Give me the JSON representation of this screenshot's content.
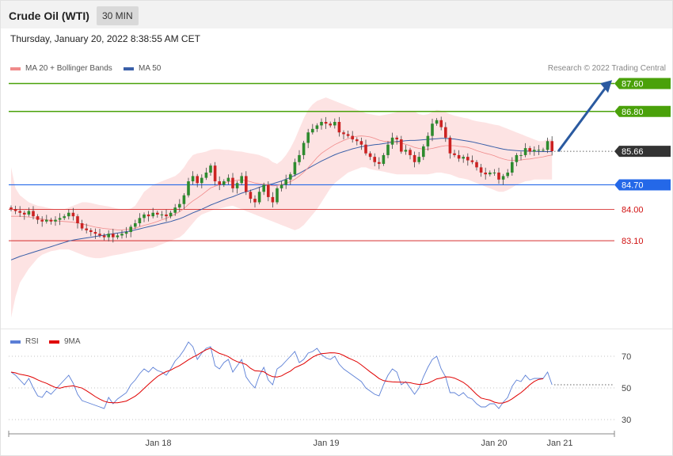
{
  "header": {
    "title": "Crude Oil (WTI)",
    "timeframe": "30 MIN"
  },
  "datetime": "Thursday, January 20, 2022 8:38:55 AM CET",
  "legend": {
    "ma20": {
      "label": "MA 20 + Bollinger Bands",
      "color": "#f08a8a"
    },
    "ma50": {
      "label": "MA 50",
      "color": "#3a5fa8"
    }
  },
  "copyright": "Research © 2022 Trading Central",
  "rsi_legend": {
    "rsi": {
      "label": "RSI",
      "color": "#5b7fd6"
    },
    "ma9": {
      "label": "9MA",
      "color": "#e00000"
    }
  },
  "levels": [
    {
      "value": 87.6,
      "label": "87.60",
      "kind": "resistance",
      "color": "#4aa10a"
    },
    {
      "value": 86.8,
      "label": "86.80",
      "kind": "resistance",
      "color": "#4aa10a"
    },
    {
      "value": 85.66,
      "label": "85.66",
      "kind": "last",
      "color": "#333333"
    },
    {
      "value": 84.7,
      "label": "84.70",
      "kind": "pivot",
      "color": "#2468e8"
    },
    {
      "value": 84.0,
      "label": "84.00",
      "kind": "support",
      "color": "#d01010"
    },
    {
      "value": 83.1,
      "label": "83.10",
      "kind": "support",
      "color": "#d01010"
    }
  ],
  "x_labels": [
    "Jan 18",
    "Jan 19",
    "Jan 20",
    "Jan 21"
  ],
  "rsi_ticks": [
    "70",
    "50",
    "30"
  ],
  "chart_data": {
    "type": "candlestick",
    "title": "",
    "y_range": [
      80.7,
      87.95
    ],
    "rsi_range": [
      20,
      80
    ],
    "close": [
      84.0,
      83.95,
      83.9,
      83.85,
      83.95,
      83.8,
      83.7,
      83.65,
      83.7,
      83.65,
      83.7,
      83.75,
      83.8,
      83.9,
      83.8,
      83.6,
      83.45,
      83.4,
      83.35,
      83.3,
      83.25,
      83.2,
      83.3,
      83.2,
      83.25,
      83.3,
      83.35,
      83.5,
      83.6,
      83.75,
      83.85,
      83.8,
      83.9,
      83.85,
      83.85,
      83.8,
      83.9,
      84.05,
      84.15,
      84.4,
      84.8,
      84.95,
      84.75,
      84.9,
      85.05,
      85.25,
      84.8,
      84.7,
      84.8,
      84.9,
      84.6,
      84.75,
      84.95,
      84.5,
      84.3,
      84.2,
      84.5,
      84.7,
      84.35,
      84.2,
      84.6,
      84.7,
      84.85,
      85.0,
      85.35,
      85.55,
      85.9,
      86.2,
      86.3,
      86.4,
      86.5,
      86.45,
      86.4,
      86.5,
      86.2,
      86.15,
      86.1,
      86.0,
      85.95,
      85.85,
      85.6,
      85.5,
      85.35,
      85.3,
      85.55,
      85.85,
      86.05,
      86.0,
      85.65,
      85.7,
      85.55,
      85.35,
      85.5,
      85.8,
      86.1,
      86.45,
      86.55,
      86.35,
      86.05,
      85.6,
      85.55,
      85.45,
      85.5,
      85.4,
      85.35,
      85.2,
      85.05,
      85.0,
      85.05,
      85.05,
      84.85,
      84.95,
      85.05,
      85.35,
      85.55,
      85.55,
      85.75,
      85.65,
      85.7,
      85.7,
      85.7,
      85.95,
      85.66
    ],
    "ma20": [
      83.8,
      83.8,
      83.8,
      83.79,
      83.78,
      83.76,
      83.74,
      83.72,
      83.7,
      83.68,
      83.67,
      83.66,
      83.65,
      83.64,
      83.63,
      83.61,
      83.58,
      83.55,
      83.52,
      83.49,
      83.47,
      83.45,
      83.44,
      83.42,
      83.41,
      83.41,
      83.42,
      83.43,
      83.46,
      83.5,
      83.54,
      83.57,
      83.61,
      83.65,
      83.7,
      83.74,
      83.8,
      83.86,
      83.93,
      84.02,
      84.14,
      84.24,
      84.32,
      84.41,
      84.51,
      84.61,
      84.66,
      84.7,
      84.75,
      84.79,
      84.81,
      84.83,
      84.84,
      84.82,
      84.79,
      84.75,
      84.73,
      84.72,
      84.7,
      84.67,
      84.68,
      84.71,
      84.75,
      84.79,
      84.86,
      84.95,
      85.06,
      85.19,
      85.33,
      85.48,
      85.6,
      85.69,
      85.77,
      85.85,
      85.91,
      85.97,
      86.02,
      86.06,
      86.09,
      86.1,
      86.09,
      86.07,
      86.03,
      85.98,
      85.95,
      85.94,
      85.93,
      85.92,
      85.89,
      85.86,
      85.82,
      85.77,
      85.74,
      85.72,
      85.72,
      85.74,
      85.77,
      85.8,
      85.82,
      85.82,
      85.82,
      85.8,
      85.79,
      85.77,
      85.73,
      85.68,
      85.64,
      85.6,
      85.57,
      85.53,
      85.48,
      85.44,
      85.41,
      85.4,
      85.4,
      85.41,
      85.43,
      85.44,
      85.46,
      85.48,
      85.5,
      85.53,
      85.55
    ],
    "ma50": [
      82.55,
      82.6,
      82.65,
      82.69,
      82.73,
      82.77,
      82.81,
      82.85,
      82.89,
      82.93,
      82.97,
      83.01,
      83.05,
      83.09,
      83.12,
      83.14,
      83.16,
      83.18,
      83.2,
      83.22,
      83.24,
      83.26,
      83.28,
      83.3,
      83.32,
      83.34,
      83.36,
      83.38,
      83.41,
      83.44,
      83.47,
      83.5,
      83.53,
      83.56,
      83.59,
      83.62,
      83.65,
      83.69,
      83.73,
      83.78,
      83.84,
      83.9,
      83.95,
      84.0,
      84.06,
      84.12,
      84.17,
      84.22,
      84.27,
      84.32,
      84.36,
      84.41,
      84.46,
      84.5,
      84.54,
      84.58,
      84.63,
      84.67,
      84.7,
      84.73,
      84.77,
      84.81,
      84.86,
      84.91,
      84.97,
      85.03,
      85.1,
      85.17,
      85.24,
      85.31,
      85.38,
      85.44,
      85.5,
      85.56,
      85.61,
      85.65,
      85.69,
      85.73,
      85.76,
      85.79,
      85.81,
      85.83,
      85.85,
      85.86,
      85.88,
      85.9,
      85.92,
      85.94,
      85.95,
      85.96,
      85.97,
      85.97,
      85.98,
      85.99,
      86.0,
      86.01,
      86.02,
      86.03,
      86.03,
      86.02,
      86.01,
      85.99,
      85.97,
      85.95,
      85.93,
      85.9,
      85.87,
      85.84,
      85.81,
      85.78,
      85.75,
      85.72,
      85.7,
      85.69,
      85.68,
      85.67,
      85.67,
      85.66,
      85.66,
      85.65,
      85.65,
      85.65,
      85.65
    ],
    "bb_upper": [
      85.2,
      84.6,
      84.4,
      84.3,
      84.2,
      84.15,
      84.1,
      84.08,
      84.05,
      84.02,
      84.0,
      84.0,
      84.0,
      84.05,
      84.1,
      84.15,
      84.2,
      84.2,
      84.18,
      84.15,
      84.12,
      84.1,
      84.08,
      84.05,
      84.02,
      84.0,
      84.0,
      84.02,
      84.1,
      84.3,
      84.5,
      84.6,
      84.7,
      84.75,
      84.8,
      84.85,
      84.9,
      84.95,
      85.05,
      85.2,
      85.4,
      85.55,
      85.6,
      85.62,
      85.65,
      85.7,
      85.72,
      85.72,
      85.7,
      85.7,
      85.68,
      85.66,
      85.65,
      85.62,
      85.6,
      85.58,
      85.55,
      85.5,
      85.45,
      85.35,
      85.3,
      85.4,
      85.55,
      85.75,
      86.0,
      86.3,
      86.6,
      86.85,
      87.0,
      87.1,
      87.15,
      87.2,
      87.15,
      87.1,
      87.05,
      87.0,
      86.95,
      86.9,
      86.85,
      86.8,
      86.75,
      86.72,
      86.7,
      86.68,
      86.7,
      86.72,
      86.75,
      86.78,
      86.8,
      86.82,
      86.82,
      86.8,
      86.72,
      86.7,
      86.72,
      86.78,
      86.85,
      86.82,
      86.78,
      86.72,
      86.68,
      86.65,
      86.62,
      86.6,
      86.55,
      86.52,
      86.5,
      86.48,
      86.45,
      86.42,
      86.4,
      86.35,
      86.3,
      86.25,
      86.2,
      86.15,
      86.1,
      86.05,
      86.0,
      85.95,
      85.95,
      86.0,
      86.0
    ],
    "bb_lower": [
      80.9,
      81.5,
      81.9,
      82.1,
      82.3,
      82.45,
      82.6,
      82.7,
      82.75,
      82.8,
      82.82,
      82.85,
      82.85,
      82.85,
      82.8,
      82.75,
      82.7,
      82.65,
      82.62,
      82.6,
      82.6,
      82.62,
      82.65,
      82.68,
      82.7,
      82.72,
      82.75,
      82.78,
      82.8,
      82.82,
      82.85,
      82.88,
      82.9,
      82.95,
      83.0,
      83.05,
      83.1,
      83.15,
      83.2,
      83.3,
      83.45,
      83.6,
      83.75,
      83.85,
      83.9,
      83.95,
      84.0,
      84.02,
      84.05,
      84.08,
      84.1,
      84.05,
      84.0,
      83.95,
      83.9,
      83.85,
      83.8,
      83.75,
      83.7,
      83.65,
      83.6,
      83.55,
      83.5,
      83.45,
      83.4,
      83.45,
      83.55,
      83.7,
      83.85,
      84.0,
      84.2,
      84.4,
      84.6,
      84.75,
      84.85,
      84.95,
      85.05,
      85.1,
      85.15,
      85.2,
      85.2,
      85.15,
      85.12,
      85.1,
      85.08,
      85.05,
      85.02,
      85.0,
      85.0,
      85.0,
      85.0,
      85.0,
      85.0,
      85.0,
      85.0,
      85.02,
      85.05,
      85.05,
      85.02,
      85.0,
      84.95,
      84.9,
      84.88,
      84.85,
      84.8,
      84.75,
      84.7,
      84.65,
      84.6,
      84.55,
      84.5,
      84.5,
      84.55,
      84.62,
      84.7,
      84.75,
      84.8,
      84.82,
      84.85,
      84.85,
      84.85,
      84.85,
      84.85
    ],
    "rsi": [
      60,
      58,
      55,
      52,
      56,
      50,
      45,
      44,
      48,
      46,
      49,
      52,
      55,
      58,
      53,
      46,
      42,
      41,
      40,
      39,
      38,
      37,
      44,
      40,
      43,
      45,
      47,
      52,
      55,
      59,
      62,
      60,
      63,
      61,
      60,
      58,
      62,
      67,
      70,
      74,
      79,
      76,
      68,
      72,
      75,
      76,
      64,
      62,
      66,
      68,
      60,
      64,
      68,
      57,
      53,
      50,
      58,
      63,
      55,
      52,
      62,
      64,
      67,
      70,
      73,
      66,
      68,
      72,
      73,
      75,
      71,
      69,
      68,
      70,
      65,
      62,
      60,
      58,
      56,
      54,
      50,
      48,
      46,
      45,
      52,
      58,
      62,
      60,
      52,
      54,
      50,
      46,
      50,
      57,
      63,
      68,
      70,
      62,
      57,
      47,
      47,
      45,
      47,
      44,
      43,
      40,
      38,
      38,
      40,
      40,
      37,
      41,
      44,
      51,
      55,
      54,
      58,
      55,
      56,
      56,
      56,
      60,
      52
    ],
    "rsi_ma9": [
      60,
      59.5,
      58.6,
      58.1,
      57.5,
      56.5,
      55.1,
      53.9,
      52.9,
      51.5,
      50.3,
      49.8,
      50.6,
      51.0,
      51.3,
      50.6,
      49.9,
      48.2,
      46.4,
      44.5,
      42.9,
      41.6,
      40.8,
      40.6,
      40.6,
      41.1,
      41.7,
      43.2,
      44.8,
      47.0,
      49.7,
      52.3,
      54.8,
      57.2,
      58.9,
      60.3,
      61.2,
      62.8,
      64.1,
      65.9,
      67.8,
      69.4,
      70.8,
      72.6,
      74.1,
      75.1,
      73.4,
      71.8,
      70.9,
      69.8,
      67.9,
      66.6,
      65.8,
      64.8,
      62.4,
      60.8,
      60.6,
      60.2,
      58.3,
      57.1,
      56.9,
      57.6,
      59.2,
      60.6,
      62.8,
      64.0,
      65.3,
      67.4,
      69.4,
      70.8,
      71.6,
      71.9,
      72.2,
      72.1,
      71.7,
      70.5,
      69.0,
      67.8,
      66.5,
      64.5,
      62.3,
      60.1,
      58.1,
      55.9,
      54.6,
      54.1,
      53.8,
      53.7,
      53.6,
      53.5,
      53.3,
      52.6,
      52.2,
      52.4,
      53.0,
      54.3,
      55.7,
      56.2,
      57.0,
      56.9,
      56.2,
      54.9,
      53.5,
      51.4,
      48.7,
      45.9,
      43.6,
      42.9,
      42.3,
      41.0,
      40.4,
      40.5,
      41.5,
      43.1,
      45.1,
      47.0,
      49.4,
      52.0,
      54.1,
      55.4,
      55.8
    ]
  }
}
